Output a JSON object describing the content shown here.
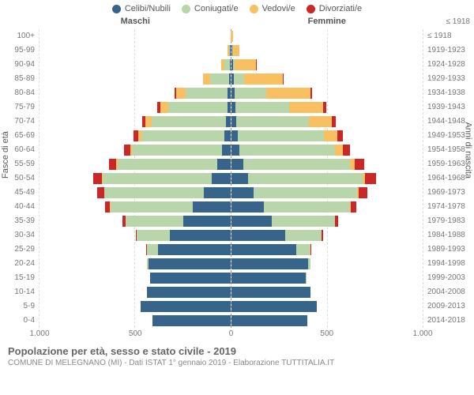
{
  "chart": {
    "type": "population-pyramid",
    "title": "Popolazione per età, sesso e stato civile - 2019",
    "subtitle": "COMUNE DI MELEGNANO (MI) - Dati ISTAT 1° gennaio 2019 - Elaborazione TUTTITALIA.IT",
    "legend": [
      {
        "label": "Celibi/Nubili",
        "color": "#36648b"
      },
      {
        "label": "Coniugati/e",
        "color": "#b8d6a9"
      },
      {
        "label": "Vedovi/e",
        "color": "#f8c060"
      },
      {
        "label": "Divorziati/e",
        "color": "#cd2626"
      }
    ],
    "left_header": "Maschi",
    "right_header": "Femmine",
    "y_left_title": "Fasce di età",
    "y_right_title": "Anni di nascita",
    "y_right_top": "≤ 1918",
    "xlim": 1000,
    "xticks_left": [
      1000,
      500,
      0
    ],
    "xticks_right": [
      500,
      1000
    ],
    "xtick_labels": [
      "1.000",
      "500",
      "0",
      "500",
      "1.000"
    ],
    "colors": {
      "celibi": "#36648b",
      "coniugati": "#b8d6a9",
      "vedovi": "#f8c060",
      "divorziati": "#cd2626",
      "grid": "#dddddd",
      "center": "#999999",
      "text": "#666666"
    },
    "age_bands": [
      "100+",
      "95-99",
      "90-94",
      "85-89",
      "80-84",
      "75-79",
      "70-74",
      "65-69",
      "60-64",
      "55-59",
      "50-54",
      "45-49",
      "40-44",
      "35-39",
      "30-34",
      "25-29",
      "20-24",
      "15-19",
      "10-14",
      "5-9",
      "0-4"
    ],
    "birth_years": [
      "≤ 1918",
      "1919-1923",
      "1924-1928",
      "1929-1933",
      "1934-1938",
      "1939-1943",
      "1944-1948",
      "1949-1953",
      "1954-1958",
      "1959-1963",
      "1964-1968",
      "1969-1973",
      "1974-1978",
      "1979-1983",
      "1984-1988",
      "1989-1993",
      "1994-1998",
      "1999-2003",
      "2004-2008",
      "2009-2013",
      "2014-2018"
    ],
    "maschi": [
      {
        "celibi": 0,
        "coniugati": 0,
        "vedovi": 2,
        "divorziati": 0
      },
      {
        "celibi": 3,
        "coniugati": 5,
        "vedovi": 8,
        "divorziati": 0
      },
      {
        "celibi": 5,
        "coniugati": 28,
        "vedovi": 18,
        "divorziati": 0
      },
      {
        "celibi": 8,
        "coniugati": 100,
        "vedovi": 35,
        "divorziati": 3
      },
      {
        "celibi": 15,
        "coniugati": 220,
        "vedovi": 50,
        "divorziati": 10
      },
      {
        "celibi": 18,
        "coniugati": 310,
        "vedovi": 40,
        "divorziati": 15
      },
      {
        "celibi": 25,
        "coniugati": 390,
        "vedovi": 30,
        "divorziati": 20
      },
      {
        "celibi": 35,
        "coniugati": 430,
        "vedovi": 18,
        "divorziati": 25
      },
      {
        "celibi": 45,
        "coniugati": 470,
        "vedovi": 12,
        "divorziati": 30
      },
      {
        "celibi": 70,
        "coniugati": 520,
        "vedovi": 8,
        "divorziati": 40
      },
      {
        "celibi": 100,
        "coniugati": 570,
        "vedovi": 5,
        "divorziati": 45
      },
      {
        "celibi": 140,
        "coniugati": 520,
        "vedovi": 3,
        "divorziati": 35
      },
      {
        "celibi": 200,
        "coniugati": 430,
        "vedovi": 2,
        "divorziati": 25
      },
      {
        "celibi": 250,
        "coniugati": 300,
        "vedovi": 0,
        "divorziati": 15
      },
      {
        "celibi": 320,
        "coniugati": 170,
        "vedovi": 0,
        "divorziati": 8
      },
      {
        "celibi": 380,
        "coniugati": 60,
        "vedovi": 0,
        "divorziati": 3
      },
      {
        "celibi": 430,
        "coniugati": 8,
        "vedovi": 0,
        "divorziati": 0
      },
      {
        "celibi": 420,
        "coniugati": 0,
        "vedovi": 0,
        "divorziati": 0
      },
      {
        "celibi": 440,
        "coniugati": 0,
        "vedovi": 0,
        "divorziati": 0
      },
      {
        "celibi": 470,
        "coniugati": 0,
        "vedovi": 0,
        "divorziati": 0
      },
      {
        "celibi": 410,
        "coniugati": 0,
        "vedovi": 0,
        "divorziati": 0
      }
    ],
    "femmine": [
      {
        "celibi": 2,
        "coniugati": 0,
        "vedovi": 6,
        "divorziati": 0
      },
      {
        "celibi": 5,
        "coniugati": 2,
        "vedovi": 35,
        "divorziati": 0
      },
      {
        "celibi": 8,
        "coniugati": 10,
        "vedovi": 110,
        "divorziati": 2
      },
      {
        "celibi": 12,
        "coniugati": 55,
        "vedovi": 200,
        "divorziati": 5
      },
      {
        "celibi": 18,
        "coniugati": 165,
        "vedovi": 230,
        "divorziati": 10
      },
      {
        "celibi": 20,
        "coniugati": 280,
        "vedovi": 180,
        "divorziati": 15
      },
      {
        "celibi": 25,
        "coniugati": 380,
        "vedovi": 120,
        "divorziati": 22
      },
      {
        "celibi": 32,
        "coniugati": 450,
        "vedovi": 70,
        "divorziati": 30
      },
      {
        "celibi": 42,
        "coniugati": 500,
        "vedovi": 40,
        "divorziati": 38
      },
      {
        "celibi": 60,
        "coniugati": 560,
        "vedovi": 25,
        "divorziati": 48
      },
      {
        "celibi": 85,
        "coniugati": 600,
        "vedovi": 15,
        "divorziati": 55
      },
      {
        "celibi": 115,
        "coniugati": 540,
        "vedovi": 10,
        "divorziati": 45
      },
      {
        "celibi": 170,
        "coniugati": 450,
        "vedovi": 5,
        "divorziati": 30
      },
      {
        "celibi": 210,
        "coniugati": 330,
        "vedovi": 2,
        "divorziati": 18
      },
      {
        "celibi": 280,
        "coniugati": 190,
        "vedovi": 0,
        "divorziati": 10
      },
      {
        "celibi": 340,
        "coniugati": 75,
        "vedovi": 0,
        "divorziati": 4
      },
      {
        "celibi": 400,
        "coniugati": 15,
        "vedovi": 0,
        "divorziati": 0
      },
      {
        "celibi": 390,
        "coniugati": 2,
        "vedovi": 0,
        "divorziati": 0
      },
      {
        "celibi": 415,
        "coniugati": 0,
        "vedovi": 0,
        "divorziati": 0
      },
      {
        "celibi": 445,
        "coniugati": 0,
        "vedovi": 0,
        "divorziati": 0
      },
      {
        "celibi": 395,
        "coniugati": 0,
        "vedovi": 0,
        "divorziati": 0
      }
    ]
  }
}
